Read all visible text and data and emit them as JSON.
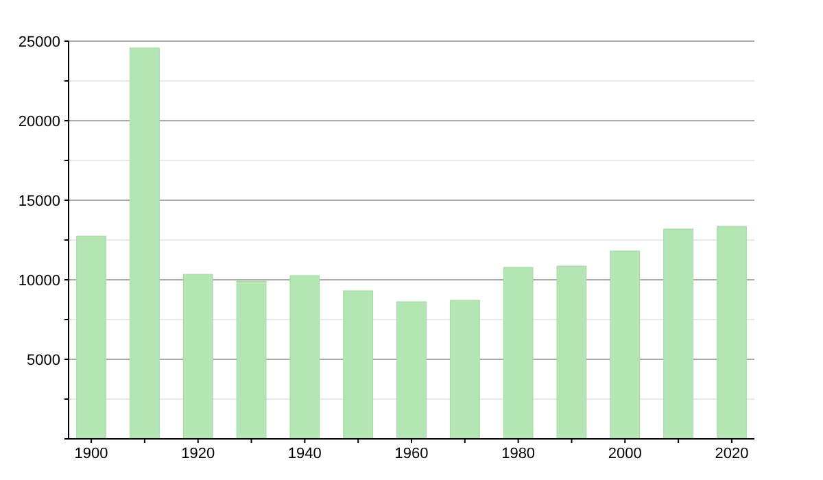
{
  "chart_data": {
    "type": "bar",
    "categories": [
      "1900",
      null,
      "1920",
      null,
      "1940",
      null,
      "1960",
      null,
      "1980",
      null,
      "2000",
      null,
      "2020"
    ],
    "values": [
      12750,
      24570,
      10340,
      9910,
      10260,
      9310,
      8620,
      8710,
      10780,
      10860,
      11810,
      13190,
      13360
    ],
    "color": "#b3e6b3",
    "ylim": [
      0,
      25000
    ],
    "yticks": [
      {
        "value": 0,
        "label": null
      },
      {
        "value": 2500,
        "label": null
      },
      5000,
      {
        "value": 7500,
        "label": null
      },
      10000,
      {
        "value": 12500,
        "label": null
      },
      15000,
      {
        "value": 17500,
        "label": null
      },
      20000,
      {
        "value": 22500,
        "label": null
      },
      25000
    ],
    "grid": "y"
  }
}
